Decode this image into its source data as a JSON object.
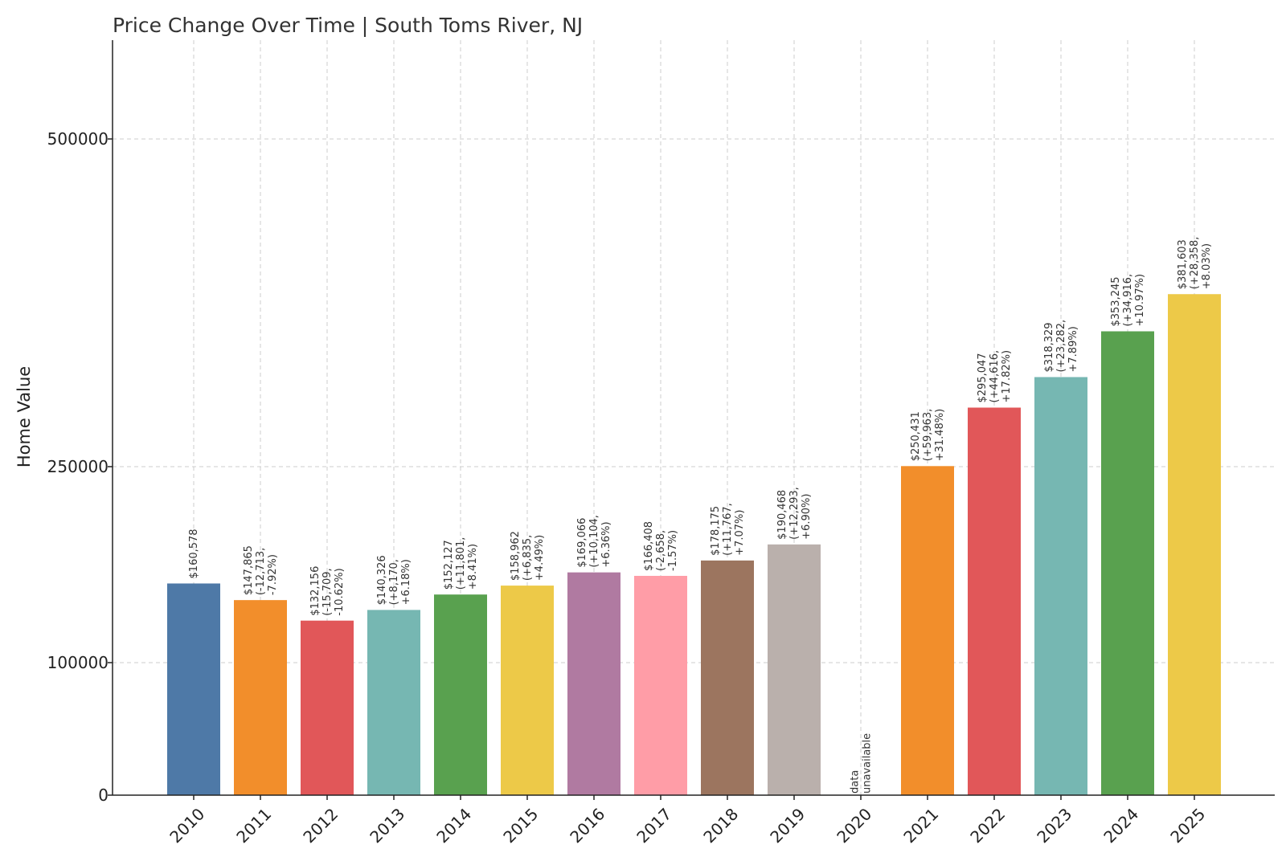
{
  "chart_data": {
    "type": "bar",
    "title": "Price Change Over Time | South Toms River, NJ",
    "ylabel": "Home Value",
    "xlabel": "",
    "ylim": [
      0,
      575000
    ],
    "yscale": "non-linear (breaks at 100000 and 250000)",
    "y_ticks": [
      0,
      100000,
      250000,
      500000
    ],
    "y_tick_labels": [
      "0",
      "100000",
      "250000",
      "500000"
    ],
    "grid": true,
    "legend": "none",
    "categories": [
      "2010",
      "2011",
      "2012",
      "2013",
      "2014",
      "2015",
      "2016",
      "2017",
      "2018",
      "2019",
      "2020",
      "2021",
      "2022",
      "2023",
      "2024",
      "2025"
    ],
    "values": [
      160578,
      147865,
      132156,
      140326,
      152127,
      158962,
      169066,
      166408,
      178175,
      190468,
      null,
      250431,
      295047,
      318329,
      353245,
      381603
    ],
    "colors": [
      "#4e79a7",
      "#f28e2b",
      "#e15759",
      "#76b7b2",
      "#59a14f",
      "#edc948",
      "#b07aa1",
      "#ff9da7",
      "#9c755f",
      "#bab0ac",
      "#4e79a7",
      "#f28e2b",
      "#e15759",
      "#76b7b2",
      "#59a14f",
      "#edc948"
    ],
    "annotations": [
      [
        "$160,578"
      ],
      [
        "$147,865",
        "(-12,713,",
        "-7.92%)"
      ],
      [
        "$132,156",
        "(-15,709,",
        "-10.62%)"
      ],
      [
        "$140,326",
        "(+8,170,",
        "+6.18%)"
      ],
      [
        "$152,127",
        "(+11,801,",
        "+8.41%)"
      ],
      [
        "$158,962",
        "(+6,835,",
        "+4.49%)"
      ],
      [
        "$169,066",
        "(+10,104,",
        "+6.36%)"
      ],
      [
        "$166,408",
        "(-2,658,",
        "-1.57%)"
      ],
      [
        "$178,175",
        "(+11,767,",
        "+7.07%)"
      ],
      [
        "$190,468",
        "(+12,293,",
        "+6.90%)"
      ],
      [
        "data",
        "unavailable"
      ],
      [
        "$250,431",
        "(+59,963,",
        "+31.48%)"
      ],
      [
        "$295,047",
        "(+44,616,",
        "+17.82%)"
      ],
      [
        "$318,329",
        "(+23,282,",
        "+7.89%)"
      ],
      [
        "$353,245",
        "(+34,916,",
        "+10.97%)"
      ],
      [
        "$381,603",
        "(+28,358,",
        "+8.03%)"
      ]
    ]
  }
}
